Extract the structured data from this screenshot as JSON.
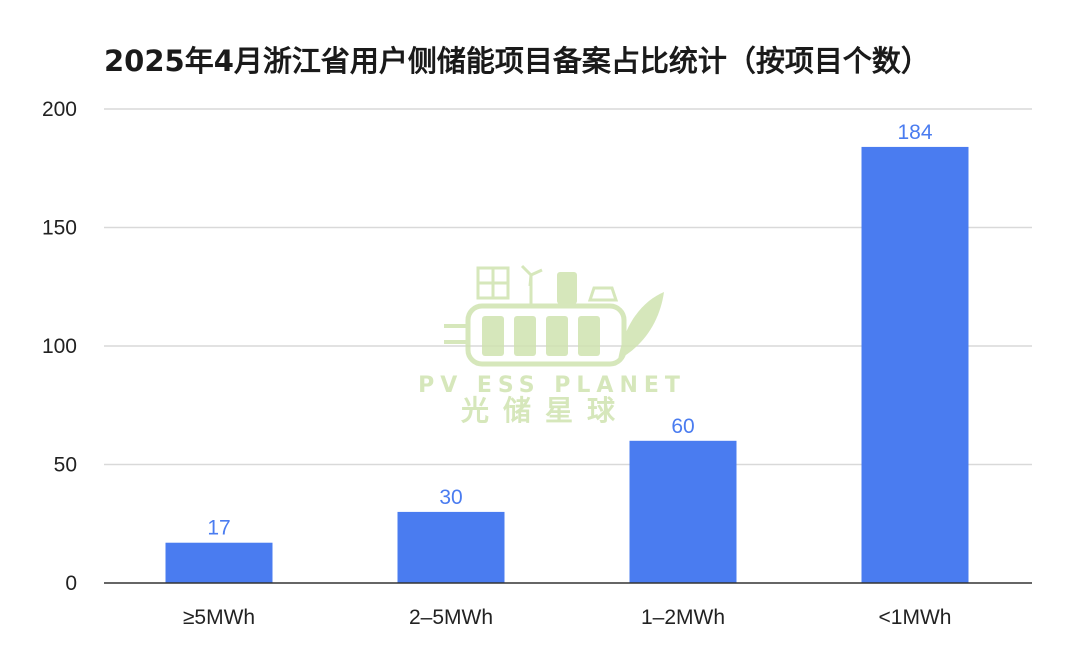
{
  "chart_data": {
    "type": "bar",
    "title": "2025年4月浙江省用户侧储能项目备案占比统计（按项目个数）",
    "categories": [
      "≥5MWh",
      "2–5MWh",
      "1–2MWh",
      "<1MWh"
    ],
    "values": [
      17,
      30,
      60,
      184
    ],
    "ylim": [
      0,
      200
    ],
    "yticks": [
      0,
      50,
      100,
      150,
      200
    ],
    "grid": true,
    "bar_color": "#4a7cf0",
    "label_color": "#4a7cf0",
    "grid_color": "#d9d9d9"
  },
  "watermark": {
    "brand": "PV ESS PLANET",
    "brand_cn": "光储星球",
    "color": "#cfe3b0"
  }
}
